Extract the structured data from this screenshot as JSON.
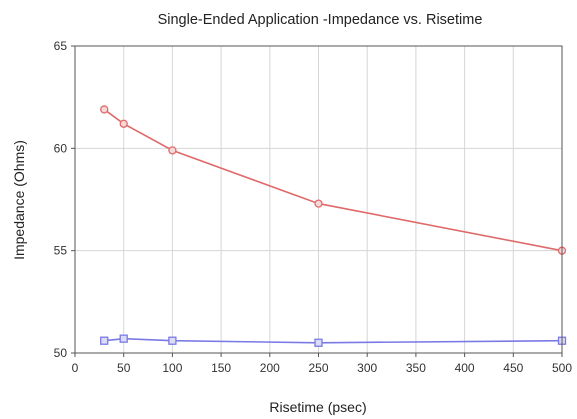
{
  "chart_data": {
    "type": "line",
    "title": "Single-Ended Application -Impedance vs. Risetime",
    "xlabel": "Risetime (psec)",
    "ylabel": "Impedance (Ohms)",
    "xlim": [
      0,
      500
    ],
    "ylim": [
      50,
      65
    ],
    "xticks": [
      0,
      50,
      100,
      150,
      200,
      250,
      300,
      350,
      400,
      450,
      500
    ],
    "yticks": [
      50,
      55,
      60,
      65
    ],
    "grid": true,
    "legend": "none",
    "series": [
      {
        "color": "#e06a6a",
        "marker": "circle",
        "x": [
          30,
          50,
          100,
          250,
          500
        ],
        "y": [
          61.9,
          61.2,
          59.9,
          57.3,
          55.0
        ]
      },
      {
        "color": "#7a7ae6",
        "marker": "square",
        "x": [
          30,
          50,
          100,
          250,
          500
        ],
        "y": [
          50.6,
          50.7,
          50.6,
          50.5,
          50.6
        ]
      }
    ]
  }
}
